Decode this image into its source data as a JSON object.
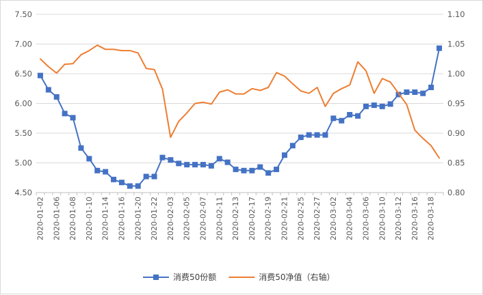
{
  "chart_data": {
    "type": "line",
    "x": [
      "2020-01-02",
      "2020-01-03",
      "2020-01-06",
      "2020-01-07",
      "2020-01-08",
      "2020-01-09",
      "2020-01-10",
      "2020-01-13",
      "2020-01-14",
      "2020-01-15",
      "2020-01-16",
      "2020-01-17",
      "2020-01-20",
      "2020-01-21",
      "2020-01-22",
      "2020-01-23",
      "2020-02-03",
      "2020-02-04",
      "2020-02-05",
      "2020-02-06",
      "2020-02-07",
      "2020-02-10",
      "2020-02-11",
      "2020-02-12",
      "2020-02-13",
      "2020-02-14",
      "2020-02-17",
      "2020-02-18",
      "2020-02-19",
      "2020-02-20",
      "2020-02-21",
      "2020-02-24",
      "2020-02-25",
      "2020-02-26",
      "2020-02-27",
      "2020-02-28",
      "2020-03-02",
      "2020-03-03",
      "2020-03-04",
      "2020-03-05",
      "2020-03-06",
      "2020-03-09",
      "2020-03-10",
      "2020-03-11",
      "2020-03-12",
      "2020-03-13",
      "2020-03-16",
      "2020-03-17",
      "2020-03-18",
      "2020-03-19"
    ],
    "x_tick_labels": [
      "2020-01-02",
      "2020-01-06",
      "2020-01-08",
      "2020-01-10",
      "2020-01-14",
      "2020-01-16",
      "2020-01-20",
      "2020-01-22",
      "2020-02-03",
      "2020-02-05",
      "2020-02-07",
      "2020-02-11",
      "2020-02-13",
      "2020-02-17",
      "2020-02-19",
      "2020-02-21",
      "2020-02-25",
      "2020-02-27",
      "2020-03-02",
      "2020-03-04",
      "2020-03-06",
      "2020-03-10",
      "2020-03-12",
      "2020-03-16",
      "2020-03-18"
    ],
    "y_left": {
      "min": 4.5,
      "max": 7.5,
      "step": 0.5,
      "tick_labels": [
        "4.50",
        "5.00",
        "5.50",
        "6.00",
        "6.50",
        "7.00",
        "7.50"
      ]
    },
    "y_right": {
      "min": 0.8,
      "max": 1.1,
      "step": 0.05,
      "tick_labels": [
        "0.80",
        "0.85",
        "0.90",
        "0.95",
        "1.00",
        "1.05",
        "1.10"
      ]
    },
    "series": [
      {
        "name": "消费50份额",
        "axis": "left",
        "color": "#4472c4",
        "marker": "square",
        "values": [
          6.47,
          6.23,
          6.11,
          5.83,
          5.76,
          5.25,
          5.07,
          4.87,
          4.85,
          4.72,
          4.67,
          4.61,
          4.61,
          4.77,
          4.77,
          5.09,
          5.05,
          4.99,
          4.97,
          4.97,
          4.97,
          4.95,
          5.07,
          5.01,
          4.89,
          4.87,
          4.87,
          4.93,
          4.83,
          4.89,
          5.13,
          5.29,
          5.43,
          5.47,
          5.47,
          5.47,
          5.75,
          5.71,
          5.81,
          5.79,
          5.95,
          5.97,
          5.95,
          5.99,
          6.15,
          6.19,
          6.19,
          6.17,
          6.27,
          6.93
        ]
      },
      {
        "name": "消费50净值（右轴）",
        "axis": "right",
        "color": "#ed7d31",
        "marker": "none",
        "values": [
          1.025,
          1.012,
          1.001,
          1.016,
          1.017,
          1.032,
          1.039,
          1.048,
          1.041,
          1.041,
          1.039,
          1.039,
          1.035,
          1.009,
          1.007,
          0.974,
          0.893,
          0.92,
          0.934,
          0.95,
          0.952,
          0.949,
          0.969,
          0.973,
          0.966,
          0.966,
          0.975,
          0.972,
          0.977,
          1.002,
          0.996,
          0.983,
          0.971,
          0.967,
          0.977,
          0.945,
          0.967,
          0.975,
          0.981,
          1.02,
          1.005,
          0.967,
          0.992,
          0.986,
          0.967,
          0.948,
          0.905,
          0.891,
          0.879,
          0.858
        ]
      }
    ],
    "legend": {
      "position": "bottom"
    },
    "grid": true
  }
}
